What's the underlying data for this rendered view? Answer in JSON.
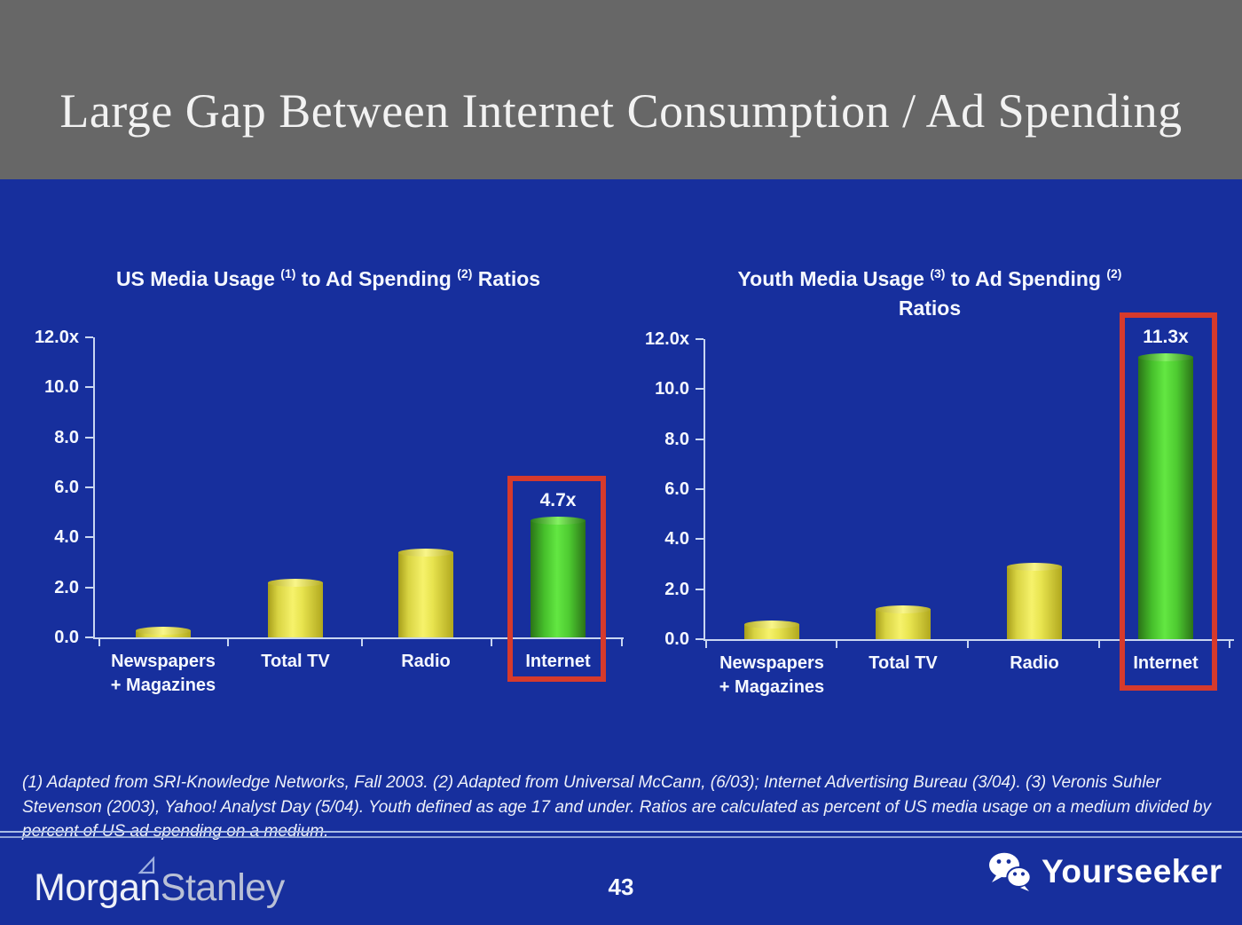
{
  "slide": {
    "header": {
      "title": "Large Gap Between Internet Consumption / Ad Spending"
    },
    "footnote": "(1) Adapted from SRI-Knowledge Networks, Fall 2003.  (2) Adapted from Universal McCann, (6/03); Internet Advertising Bureau (3/04). (3) Veronis Suhler Stevenson (2003), Yahoo! Analyst Day (5/04).  Youth defined as age 17 and under.  Ratios are calculated as percent of US media usage on a medium divided by percent of US ad spending on a medium.",
    "footer": {
      "brand_morgan": "Morgan",
      "brand_stanley": "Stanley",
      "brand_icon": "morgan-stanley-triangle-icon",
      "page_number": "43",
      "watermark": "Yourseeker",
      "watermark_icon": "wechat-icon"
    }
  },
  "colors": {
    "background_blue": "#172f9d",
    "header_gray": "#676767",
    "bar_yellow": "#f6f26b",
    "bar_green": "#63e742",
    "highlight_red": "#d63a2c",
    "axis_light": "#c9d6f1",
    "text_white": "#f5f8ff"
  },
  "chart_data": [
    {
      "type": "bar",
      "title": "US Media Usage (1) to Ad Spending (2) Ratios",
      "title_lines": [
        [
          {
            "t": "US Media Usage "
          },
          {
            "sup": "(1)"
          },
          {
            "t": " to Ad Spending "
          },
          {
            "sup": "(2)"
          },
          {
            "t": " Ratios"
          }
        ]
      ],
      "categories": [
        [
          "Newspapers",
          "+ Magazines"
        ],
        [
          "Total TV"
        ],
        [
          "Radio"
        ],
        [
          "Internet"
        ]
      ],
      "values": [
        0.3,
        2.2,
        3.4,
        4.7
      ],
      "bar_colors": [
        "yellow",
        "yellow",
        "yellow",
        "green"
      ],
      "highlight_index": 3,
      "highlight_label": "4.7x",
      "xlabel": "",
      "ylabel": "",
      "ylim": [
        0,
        12
      ],
      "yticks": [
        "12.0x",
        "10.0",
        "8.0",
        "6.0",
        "4.0",
        "2.0",
        "0.0"
      ],
      "grid": false,
      "legend": false
    },
    {
      "type": "bar",
      "title": "Youth Media Usage (3) to Ad Spending (2) Ratios",
      "title_lines": [
        [
          {
            "t": "Youth Media Usage "
          },
          {
            "sup": "(3)"
          },
          {
            "t": " to Ad Spending "
          },
          {
            "sup": "(2)"
          }
        ],
        [
          {
            "t": "Ratios"
          }
        ]
      ],
      "categories": [
        [
          "Newspapers",
          "+ Magazines"
        ],
        [
          "Total TV"
        ],
        [
          "Radio"
        ],
        [
          "Internet"
        ]
      ],
      "values": [
        0.6,
        1.2,
        2.9,
        11.3
      ],
      "bar_colors": [
        "yellow",
        "yellow",
        "yellow",
        "green"
      ],
      "highlight_index": 3,
      "highlight_label": "11.3x",
      "xlabel": "",
      "ylabel": "",
      "ylim": [
        0,
        12
      ],
      "yticks": [
        "12.0x",
        "10.0",
        "8.0",
        "6.0",
        "4.0",
        "2.0",
        "0.0"
      ],
      "grid": false,
      "legend": false
    }
  ]
}
